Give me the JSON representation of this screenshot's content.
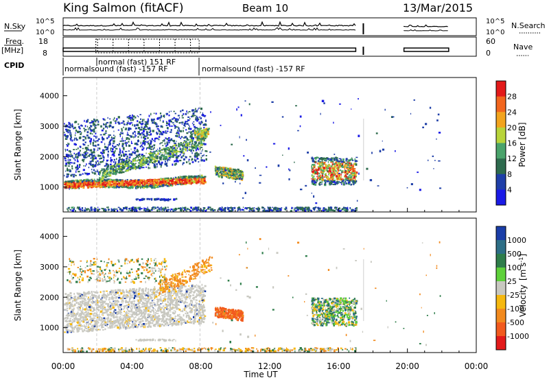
{
  "header": {
    "station": "King Salmon (fitACF)",
    "beam": "Beam 10",
    "date": "13/Mar/2015"
  },
  "left_labels": {
    "nsky": "N.Sky",
    "nsky_ticks": [
      "10^5",
      "10^0"
    ],
    "freq": "Freq.",
    "freq_unit": "[MHz]",
    "freq_ticks": [
      "18",
      "8"
    ],
    "cpid": "CPID"
  },
  "right_labels": {
    "nsearch": "N.Search",
    "nsearch_ticks": [
      "10^5",
      "10^0"
    ],
    "nave": "Nave",
    "nave_ticks": [
      "60",
      "0"
    ]
  },
  "cpid_labels": {
    "normal_fast": "normal (fast) 151 RF",
    "normalsound_1": "normalsound (fast) -157 RF",
    "normalsound_2": "normalsound (fast) -157 RF"
  },
  "axes": {
    "y_label": "Slant Range [km]",
    "x_label": "Time UT",
    "y_ticks": [
      "1000",
      "2000",
      "3000",
      "4000"
    ],
    "x_ticks": [
      "00:00",
      "04:00",
      "08:00",
      "12:00",
      "16:00",
      "20:00",
      "00:00"
    ]
  },
  "power_colorbar": {
    "label": "Power [dB]",
    "ticks": [
      "4",
      "8",
      "12",
      "16",
      "20",
      "24",
      "28"
    ],
    "colors": [
      "#1a1ae6",
      "#1f3fa8",
      "#2e6b4e",
      "#4aa36b",
      "#b8d43a",
      "#f2a41e",
      "#f2661e",
      "#e31a1a"
    ]
  },
  "velocity_colorbar": {
    "label": "Velocity",
    "unit": "[m s",
    "unit_exp": "-1",
    "unit_close": "]",
    "ticks": [
      "1000",
      "500",
      "100",
      "25",
      "-25",
      "-100",
      "-500",
      "-1000"
    ],
    "colors": [
      "#1a3ea8",
      "#2d6e86",
      "#2e7d4a",
      "#5ed13a",
      "#c8c8c0",
      "#f5b80f",
      "#f28a1e",
      "#f25a1e",
      "#e31a1a"
    ]
  },
  "chart_data": {
    "type": "heatmap",
    "title": "King Salmon (fitACF) Beam 10 13/Mar/2015",
    "xlabel": "Time UT",
    "ylabel": "Slant Range [km]",
    "x_ticks": [
      "00:00",
      "04:00",
      "08:00",
      "12:00",
      "16:00",
      "20:00",
      "00:00"
    ],
    "xlim_hours": [
      0,
      24
    ],
    "ylim_km": [
      180,
      4600
    ],
    "panels": [
      "Power [dB]",
      "Velocity [m s-1]"
    ],
    "power_scale_db": [
      0,
      30
    ],
    "velocity_scale": [
      -1000,
      1000
    ]
  }
}
